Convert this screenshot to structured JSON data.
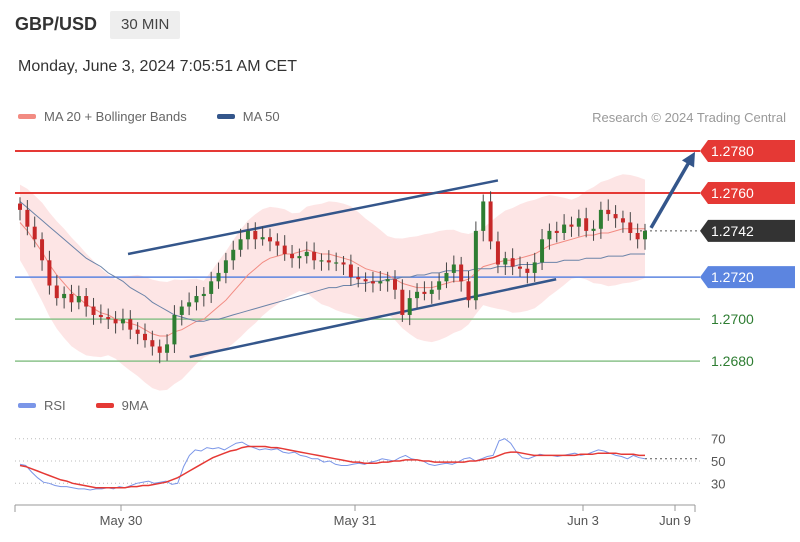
{
  "header": {
    "symbol": "GBP/USD",
    "timeframe": "30 MIN",
    "timestamp": "Monday, June 3, 2024 7:05:51 AM CET"
  },
  "legend": {
    "ma20_label": "MA 20 + Bollinger Bands",
    "ma50_label": "MA 50",
    "rsi_label": "RSI",
    "rsi_ma_label": "9MA"
  },
  "credit": "Research © 2024 Trading Central",
  "colors": {
    "bullish": "#2e7d32",
    "bearish": "#c62828",
    "resistance": "#e53935",
    "support_blue": "#5c85e0",
    "support_green": "#8bc28b",
    "channel": "#34568b",
    "ma20": "#f28b82",
    "ma50": "#6b83a8",
    "bollinger_fill": "#fde1e1",
    "current_price": "#333333",
    "rsi": "#7b96e8",
    "rsi_ma": "#e53935"
  },
  "chart_data": [
    {
      "type": "candlestick",
      "ylim": [
        1.2672,
        1.279
      ],
      "x_ticks": [
        "May 30",
        "May 31",
        "Jun 3",
        "Jun 9"
      ],
      "price_levels": [
        {
          "value": 1.278,
          "label": "1.2780",
          "kind": "resistance"
        },
        {
          "value": 1.276,
          "label": "1.2760",
          "kind": "resistance"
        },
        {
          "value": 1.2742,
          "label": "1.2742",
          "kind": "current"
        },
        {
          "value": 1.272,
          "label": "1.2720",
          "kind": "pivot"
        },
        {
          "value": 1.27,
          "label": "1.2700",
          "kind": "support"
        },
        {
          "value": 1.268,
          "label": "1.2680",
          "kind": "support"
        }
      ],
      "close_series": [
        1.2752,
        1.2744,
        1.2738,
        1.2728,
        1.2716,
        1.271,
        1.2712,
        1.2708,
        1.2711,
        1.2706,
        1.2702,
        1.2701,
        1.27,
        1.2698,
        1.27,
        1.2695,
        1.2693,
        1.269,
        1.2687,
        1.2684,
        1.2688,
        1.2702,
        1.2706,
        1.2708,
        1.2711,
        1.2712,
        1.2718,
        1.2722,
        1.2728,
        1.2733,
        1.2738,
        1.2742,
        1.2738,
        1.2739,
        1.2737,
        1.2735,
        1.2731,
        1.2729,
        1.273,
        1.2732,
        1.2728,
        1.2728,
        1.2727,
        1.2727,
        1.2726,
        1.272,
        1.2719,
        1.2718,
        1.2717,
        1.2718,
        1.2719,
        1.2714,
        1.2702,
        1.271,
        1.2713,
        1.2712,
        1.2714,
        1.2718,
        1.2722,
        1.2726,
        1.2718,
        1.2709,
        1.2742,
        1.2756,
        1.2737,
        1.2726,
        1.2729,
        1.2725,
        1.2724,
        1.2722,
        1.2727,
        1.2738,
        1.2742,
        1.2741,
        1.2745,
        1.2744,
        1.2748,
        1.2742,
        1.2743,
        1.2752,
        1.275,
        1.2748,
        1.2746,
        1.2741,
        1.2738,
        1.2742
      ],
      "ma20_series": [
        1.2746,
        1.2742,
        1.2737,
        1.2732,
        1.2726,
        1.2721,
        1.2717,
        1.2713,
        1.271,
        1.2707,
        1.2705,
        1.2703,
        1.2702,
        1.27,
        1.2699,
        1.2698,
        1.2697,
        1.2695,
        1.2693,
        1.2692,
        1.2692,
        1.2694,
        1.2695,
        1.2697,
        1.2699,
        1.27,
        1.2703,
        1.2706,
        1.2709,
        1.2713,
        1.2717,
        1.2721,
        1.2724,
        1.2727,
        1.2729,
        1.273,
        1.2731,
        1.2731,
        1.2732,
        1.2733,
        1.2732,
        1.2731,
        1.2731,
        1.273,
        1.2729,
        1.2728,
        1.2726,
        1.2724,
        1.2723,
        1.2722,
        1.2721,
        1.2719,
        1.2717,
        1.2716,
        1.2715,
        1.2715,
        1.2715,
        1.2716,
        1.2717,
        1.2718,
        1.2718,
        1.2719,
        1.2722,
        1.2725,
        1.2726,
        1.2727,
        1.2728,
        1.2728,
        1.2729,
        1.273,
        1.2731,
        1.2733,
        1.2735,
        1.2736,
        1.2737,
        1.2738,
        1.2739,
        1.274,
        1.274,
        1.2741,
        1.2741,
        1.2742,
        1.2743,
        1.2743,
        1.2743,
        1.2743
      ],
      "ma50_series": [
        1.2756,
        1.2753,
        1.275,
        1.2747,
        1.2744,
        1.2741,
        1.2738,
        1.2735,
        1.2732,
        1.2729,
        1.2727,
        1.2725,
        1.2722,
        1.272,
        1.2718,
        1.2715,
        1.2713,
        1.2711,
        1.2708,
        1.2706,
        1.2704,
        1.2702,
        1.2701,
        1.27,
        1.2699,
        1.2699,
        1.27,
        1.27,
        1.2701,
        1.2702,
        1.2703,
        1.2704,
        1.2705,
        1.2706,
        1.2707,
        1.2708,
        1.2709,
        1.271,
        1.2711,
        1.2712,
        1.2713,
        1.2714,
        1.2715,
        1.2715,
        1.2716,
        1.2716,
        1.2717,
        1.2717,
        1.2718,
        1.2718,
        1.2719,
        1.2719,
        1.272,
        1.272,
        1.2721,
        1.2721,
        1.2722,
        1.2722,
        1.2723,
        1.2723,
        1.2723,
        1.2723,
        1.2724,
        1.2724,
        1.2724,
        1.2725,
        1.2725,
        1.2725,
        1.2726,
        1.2726,
        1.2726,
        1.2727,
        1.2727,
        1.2727,
        1.2728,
        1.2728,
        1.2728,
        1.2729,
        1.2729,
        1.2729,
        1.273,
        1.273,
        1.273,
        1.2731,
        1.2731,
        1.2731
      ],
      "channel": {
        "upper": [
          [
            0.165,
            1.2731
          ],
          [
            0.705,
            1.2766
          ]
        ],
        "lower": [
          [
            0.255,
            1.2682
          ],
          [
            0.79,
            1.2719
          ]
        ]
      },
      "forecast_arrow": {
        "from": 1.2742,
        "to": 1.278
      }
    },
    {
      "type": "line",
      "ylim": [
        15,
        85
      ],
      "y_ticks": [
        70,
        50,
        30
      ],
      "series": [
        {
          "name": "RSI",
          "values": [
            47,
            46,
            40,
            35,
            31,
            30,
            28,
            27,
            27,
            26,
            25,
            25,
            24,
            25,
            25,
            26,
            25,
            27,
            26,
            28,
            30,
            31,
            32,
            30,
            31,
            32,
            29,
            30,
            45,
            55,
            60,
            59,
            62,
            61,
            62,
            60,
            63,
            66,
            67,
            64,
            62,
            60,
            61,
            60,
            61,
            58,
            57,
            58,
            55,
            54,
            52,
            52,
            49,
            50,
            47,
            46,
            46,
            47,
            48,
            47,
            49,
            50,
            52,
            51,
            50,
            53,
            55,
            52,
            51,
            50,
            47,
            46,
            47,
            48,
            47,
            49,
            52,
            53,
            50,
            52,
            54,
            55,
            68,
            70,
            66,
            58,
            53,
            52,
            54,
            56,
            55,
            55,
            54,
            55,
            56,
            57,
            55,
            56,
            58,
            60,
            59,
            57,
            55,
            54,
            52,
            55,
            53,
            52
          ]
        },
        {
          "name": "9MA",
          "values": [
            46,
            45,
            43,
            41,
            39,
            37,
            35,
            33,
            32,
            30,
            29,
            28,
            27,
            26,
            26,
            26,
            26,
            26,
            26,
            27,
            27,
            28,
            28,
            29,
            30,
            31,
            33,
            35,
            38,
            41,
            44,
            47,
            50,
            53,
            55,
            57,
            59,
            60,
            62,
            63,
            63,
            63,
            63,
            62,
            62,
            61,
            60,
            59,
            58,
            57,
            56,
            55,
            54,
            53,
            52,
            51,
            50,
            49,
            49,
            48,
            48,
            48,
            49,
            49,
            50,
            50,
            51,
            51,
            51,
            50,
            50,
            49,
            49,
            49,
            49,
            49,
            49,
            50,
            50,
            51,
            52,
            53,
            55,
            57,
            58,
            58,
            57,
            56,
            55,
            55,
            55,
            55,
            55,
            55,
            55,
            55,
            56,
            56,
            56,
            57,
            57,
            57,
            57,
            56,
            56,
            56,
            55,
            55
          ]
        }
      ]
    }
  ]
}
